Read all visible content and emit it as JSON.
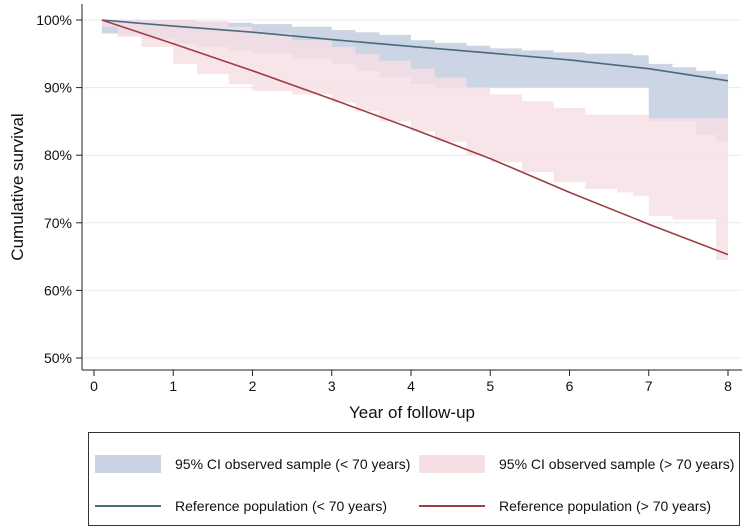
{
  "chart_data": {
    "type": "line",
    "title": "",
    "xlabel": "Year of follow-up",
    "ylabel": "Cumulative survival",
    "xlim": [
      0,
      8
    ],
    "ylim": [
      0.5,
      1.0
    ],
    "xticks": [
      "0",
      "1",
      "2",
      "3",
      "4",
      "5",
      "6",
      "7",
      "8"
    ],
    "yticks": [
      "50%",
      "60%",
      "70%",
      "80%",
      "90%",
      "100%"
    ],
    "grid": true,
    "legend_position": "bottom",
    "colors": {
      "ci_under70": "#c9d3e1",
      "ci_over70": "#f6dfe3",
      "ref_under70": "#4a6a80",
      "ref_over70": "#9e3e44"
    },
    "series": [
      {
        "name": "95% CI observed sample (< 70 years)",
        "kind": "band",
        "color_key": "ci_under70",
        "x": [
          0.1,
          0.3,
          0.6,
          1.0,
          1.3,
          1.7,
          2.0,
          2.5,
          3.0,
          3.3,
          3.6,
          4.0,
          4.3,
          4.7,
          5.0,
          5.4,
          5.8,
          6.2,
          6.6,
          6.8,
          7.0,
          7.3,
          7.6,
          7.85,
          8.0
        ],
        "lower": [
          0.98,
          0.978,
          0.972,
          0.965,
          0.96,
          0.955,
          0.95,
          0.943,
          0.935,
          0.925,
          0.915,
          0.905,
          0.9,
          0.9,
          0.9,
          0.9,
          0.9,
          0.9,
          0.9,
          0.9,
          0.85,
          0.85,
          0.83,
          0.82,
          0.82
        ],
        "upper": [
          1.0,
          1.0,
          1.0,
          1.0,
          0.998,
          0.996,
          0.994,
          0.99,
          0.985,
          0.982,
          0.978,
          0.97,
          0.966,
          0.962,
          0.958,
          0.955,
          0.952,
          0.95,
          0.95,
          0.948,
          0.935,
          0.93,
          0.925,
          0.92,
          0.92
        ]
      },
      {
        "name": "95% CI observed sample (> 70 years)",
        "kind": "band",
        "color_key": "ci_over70",
        "x": [
          0.1,
          0.3,
          0.6,
          1.0,
          1.3,
          1.7,
          2.0,
          2.5,
          3.0,
          3.3,
          3.6,
          4.0,
          4.3,
          4.7,
          5.0,
          5.4,
          5.8,
          6.2,
          6.6,
          6.8,
          7.0,
          7.3,
          7.6,
          7.85,
          8.0
        ],
        "lower": [
          0.99,
          0.975,
          0.96,
          0.935,
          0.92,
          0.905,
          0.895,
          0.89,
          0.878,
          0.865,
          0.85,
          0.835,
          0.82,
          0.8,
          0.79,
          0.775,
          0.76,
          0.75,
          0.745,
          0.74,
          0.71,
          0.705,
          0.705,
          0.645,
          0.645
        ],
        "upper": [
          1.0,
          1.0,
          1.0,
          1.0,
          0.998,
          0.99,
          0.98,
          0.97,
          0.96,
          0.95,
          0.94,
          0.928,
          0.915,
          0.9,
          0.89,
          0.88,
          0.87,
          0.86,
          0.86,
          0.86,
          0.855,
          0.855,
          0.855,
          0.855,
          0.855
        ]
      },
      {
        "name": "Reference population (< 70 years)",
        "kind": "line",
        "color_key": "ref_under70",
        "x": [
          0.1,
          1,
          2,
          3,
          4,
          5,
          6,
          7,
          8
        ],
        "values": [
          1.0,
          0.991,
          0.982,
          0.971,
          0.961,
          0.951,
          0.941,
          0.928,
          0.91
        ]
      },
      {
        "name": "Reference population (> 70 years)",
        "kind": "line",
        "color_key": "ref_over70",
        "x": [
          0.1,
          1,
          2,
          3,
          4,
          5,
          6,
          7,
          8
        ],
        "values": [
          1.0,
          0.965,
          0.925,
          0.883,
          0.84,
          0.795,
          0.745,
          0.698,
          0.653
        ]
      }
    ]
  },
  "legend": {
    "items": [
      {
        "label": "95% CI observed sample (< 70 years)"
      },
      {
        "label": "95% CI observed sample (> 70 years)"
      },
      {
        "label": "Reference population (< 70 years)"
      },
      {
        "label": "Reference population (> 70 years)"
      }
    ]
  }
}
